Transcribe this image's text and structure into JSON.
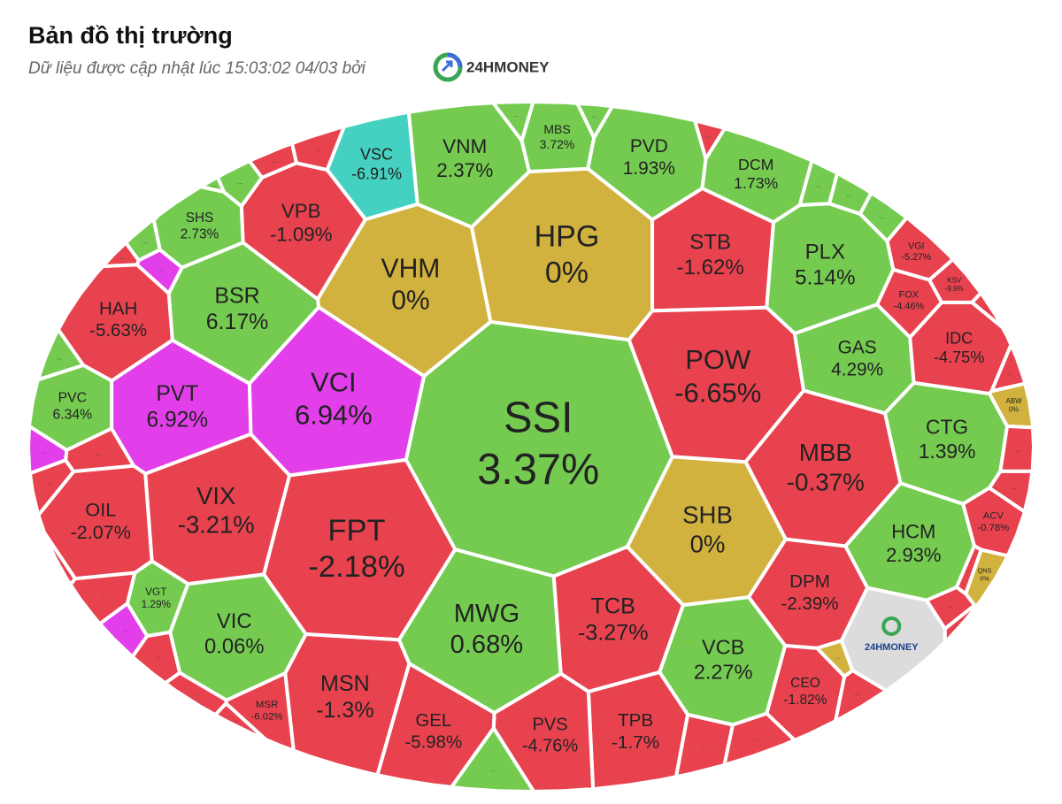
{
  "header": {
    "title": "Bản đồ thị trường",
    "subtitle": "Dữ liệu được cập nhật lúc 15:03:02 04/03 bởi",
    "brand": "24HMONEY"
  },
  "more_label": "...",
  "chart_data": {
    "type": "voronoi-treemap",
    "categories": [
      "SSI",
      "FPT",
      "HPG",
      "VHM",
      "VCI",
      "PVT",
      "BSR",
      "HAH",
      "VPB",
      "SHS",
      "VSC",
      "VNM",
      "MBS",
      "PVD",
      "DCM",
      "STB",
      "PLX",
      "POW",
      "GAS",
      "IDC",
      "VGI",
      "KSV",
      "FOX",
      "ABW",
      "CTG",
      "MBB",
      "SHB",
      "HCM",
      "ACV",
      "QNS",
      "DPM",
      "CEO",
      "VCB",
      "TPB",
      "TCB",
      "PVS",
      "MWG",
      "GEL",
      "MSN",
      "VIC",
      "MSR",
      "VGT",
      "OIL",
      "VIX",
      "PVC"
    ],
    "values": [
      3.37,
      -2.18,
      0,
      0,
      6.94,
      6.92,
      6.17,
      -5.63,
      -1.09,
      2.73,
      -6.91,
      2.37,
      3.72,
      1.93,
      1.73,
      -1.62,
      5.14,
      -6.65,
      4.29,
      -4.75,
      -5.27,
      -9.9,
      -4.46,
      0,
      1.39,
      -0.37,
      0,
      2.93,
      -0.78,
      0,
      -2.39,
      -1.82,
      2.27,
      -1.7,
      -3.27,
      -4.76,
      0.68,
      -5.98,
      -1.3,
      0.06,
      -6.02,
      1.29,
      -2.07,
      -3.21,
      6.34
    ],
    "value_labels": [
      "3.37%",
      "-2.18%",
      "0%",
      "0%",
      "6.94%",
      "6.92%",
      "6.17%",
      "-5.63%",
      "-1.09%",
      "2.73%",
      "-6.91%",
      "2.37%",
      "3.72%",
      "1.93%",
      "1.73%",
      "-1.62%",
      "5.14%",
      "-6.65%",
      "4.29%",
      "-4.75%",
      "-5.27%",
      "-9.9%",
      "-4.46%",
      "0%",
      "1.39%",
      "-0.37%",
      "0%",
      "2.93%",
      "-0.78%",
      "0%",
      "-2.39%",
      "-1.82%",
      "2.27%",
      "-1.7%",
      "-3.27%",
      "-4.76%",
      "0.68%",
      "-5.98%",
      "-1.3%",
      "0.06%",
      "-6.02%",
      "1.29%",
      "-2.07%",
      "-3.21%",
      "6.34%"
    ],
    "colors": [
      "#74cb50",
      "#e8424f",
      "#d2b23e",
      "#d2b23e",
      "#e23fea",
      "#e23fea",
      "#74cb50",
      "#e8424f",
      "#e8424f",
      "#74cb50",
      "#45d1c2",
      "#74cb50",
      "#74cb50",
      "#74cb50",
      "#74cb50",
      "#e8424f",
      "#74cb50",
      "#e8424f",
      "#74cb50",
      "#e8424f",
      "#e8424f",
      "#e8424f",
      "#e8424f",
      "#d2b23e",
      "#74cb50",
      "#e8424f",
      "#d2b23e",
      "#74cb50",
      "#e8424f",
      "#d2b23e",
      "#e8424f",
      "#e8424f",
      "#74cb50",
      "#e8424f",
      "#e8424f",
      "#e8424f",
      "#74cb50",
      "#e8424f",
      "#e8424f",
      "#74cb50",
      "#e8424f",
      "#74cb50",
      "#e8424f",
      "#e8424f",
      "#74cb50"
    ]
  }
}
